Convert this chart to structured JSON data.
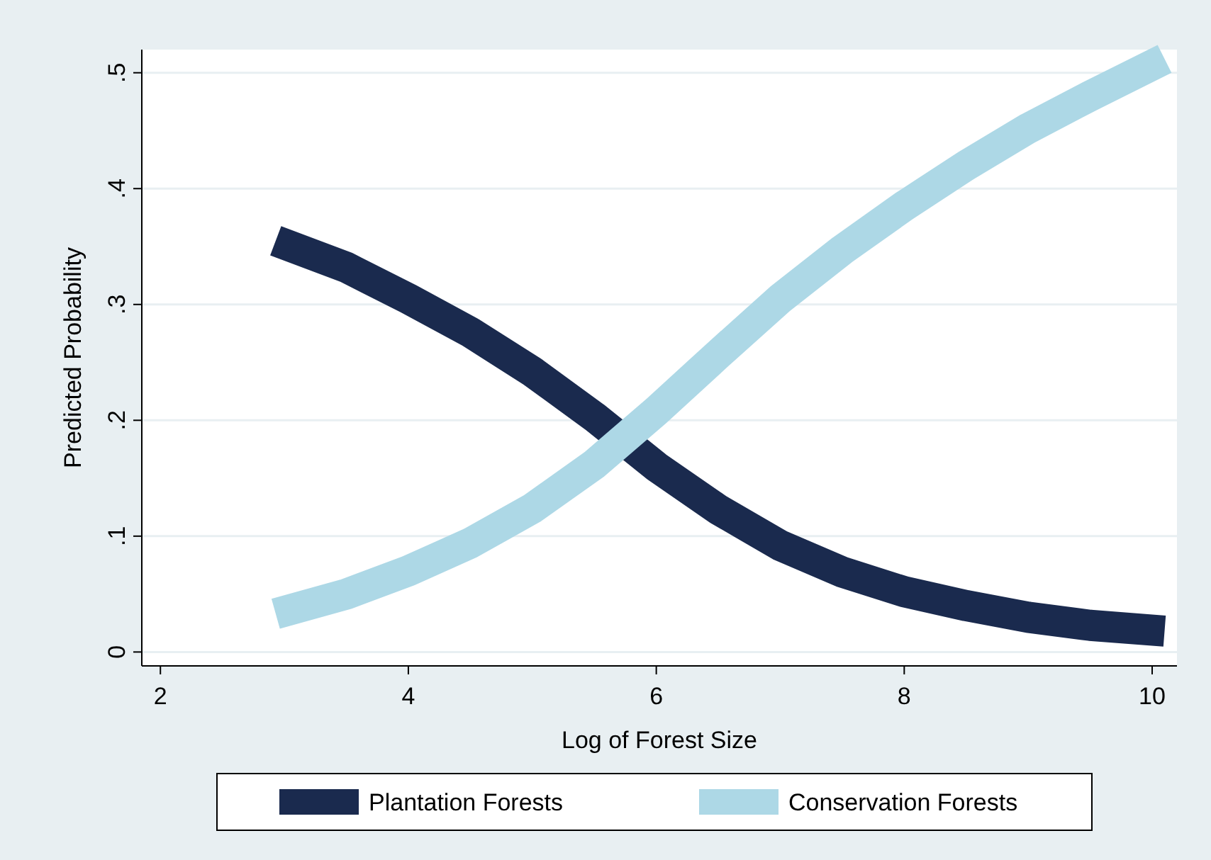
{
  "chart_data": {
    "type": "line",
    "xlabel": "Log of Forest Size",
    "ylabel": "Predicted Probability",
    "xlim": [
      1.85,
      10.2
    ],
    "ylim": [
      -0.012,
      0.52
    ],
    "xticks": [
      2,
      4,
      6,
      8,
      10
    ],
    "yticks": [
      0,
      {
        "value": 0.1,
        "label": ".1"
      },
      {
        "value": 0.2,
        "label": ".2"
      },
      {
        "value": 0.3,
        "label": ".3"
      },
      {
        "value": 0.4,
        "label": ".4"
      },
      {
        "value": 0.5,
        "label": ".5"
      }
    ],
    "grid": "y",
    "legend": "bottom",
    "marker": "none",
    "line_style": "solid",
    "series": [
      {
        "name": "Plantation Forests",
        "color": "#1a2a4e",
        "x": [
          2.93,
          3.5,
          4,
          4.5,
          5,
          5.5,
          6,
          6.5,
          7,
          7.5,
          8,
          8.5,
          9,
          9.5,
          10.1
        ],
        "values": [
          0.355,
          0.332,
          0.305,
          0.276,
          0.242,
          0.203,
          0.16,
          0.123,
          0.092,
          0.069,
          0.052,
          0.04,
          0.03,
          0.023,
          0.018
        ]
      },
      {
        "name": "Conservation Forests",
        "color": "#add8e6",
        "x": [
          2.93,
          3.5,
          4,
          4.5,
          5,
          5.5,
          6,
          6.5,
          7,
          7.5,
          8,
          8.5,
          9,
          9.5,
          10.1
        ],
        "values": [
          0.033,
          0.05,
          0.07,
          0.094,
          0.124,
          0.162,
          0.208,
          0.257,
          0.305,
          0.347,
          0.385,
          0.42,
          0.452,
          0.48,
          0.512
        ]
      }
    ]
  }
}
